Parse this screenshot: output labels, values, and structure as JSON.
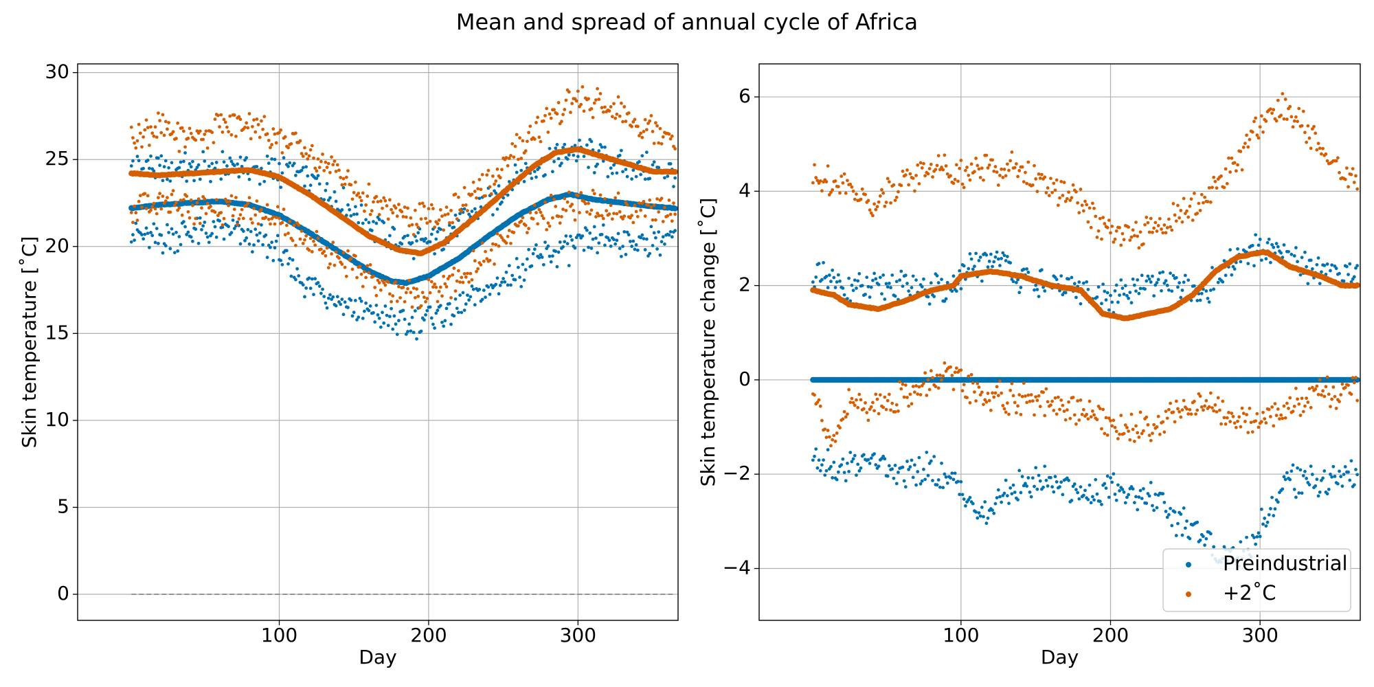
{
  "figure_title": "Mean and spread of annual cycle of Africa",
  "colors": {
    "preindustrial": "#0072b2",
    "warm": "#d55e00",
    "grid": "#b0b0b0",
    "zero_line": "#808080"
  },
  "chart_data": [
    {
      "type": "scatter",
      "xlabel": "Day",
      "ylabel": "Skin temperature [˚C]",
      "xlim": [
        -35,
        367
      ],
      "ylim": [
        -1.5,
        30.5
      ],
      "xticks": [
        100,
        200,
        300
      ],
      "yticks": [
        0,
        5,
        10,
        15,
        20,
        25,
        30
      ],
      "grid": true,
      "reference_line": {
        "y": 0,
        "x": [
          1,
          365
        ],
        "style": "dashed"
      },
      "series": [
        {
          "role": "mean",
          "color_key": "preindustrial",
          "anchors": [
            [
              1,
              22.2
            ],
            [
              20,
              22.4
            ],
            [
              40,
              22.5
            ],
            [
              60,
              22.6
            ],
            [
              80,
              22.4
            ],
            [
              100,
              21.8
            ],
            [
              120,
              20.8
            ],
            [
              140,
              19.7
            ],
            [
              160,
              18.6
            ],
            [
              175,
              18.0
            ],
            [
              185,
              17.9
            ],
            [
              200,
              18.3
            ],
            [
              220,
              19.3
            ],
            [
              240,
              20.6
            ],
            [
              260,
              21.8
            ],
            [
              280,
              22.7
            ],
            [
              295,
              23.0
            ],
            [
              310,
              22.7
            ],
            [
              330,
              22.5
            ],
            [
              350,
              22.3
            ],
            [
              365,
              22.2
            ]
          ]
        },
        {
          "role": "upper",
          "color_key": "preindustrial",
          "anchors": [
            [
              1,
              24.5
            ],
            [
              40,
              24.4
            ],
            [
              75,
              24.6
            ],
            [
              100,
              24.3
            ],
            [
              120,
              23.8
            ],
            [
              140,
              22.6
            ],
            [
              160,
              21.2
            ],
            [
              180,
              20.2
            ],
            [
              200,
              20.2
            ],
            [
              220,
              21.2
            ],
            [
              240,
              22.4
            ],
            [
              260,
              24.0
            ],
            [
              280,
              25.0
            ],
            [
              300,
              25.4
            ],
            [
              320,
              24.9
            ],
            [
              345,
              24.5
            ],
            [
              365,
              24.3
            ]
          ]
        },
        {
          "role": "lower",
          "color_key": "preindustrial",
          "anchors": [
            [
              1,
              20.7
            ],
            [
              20,
              20.4
            ],
            [
              40,
              20.9
            ],
            [
              70,
              20.8
            ],
            [
              90,
              20.2
            ],
            [
              100,
              19.6
            ],
            [
              115,
              18.0
            ],
            [
              130,
              17.5
            ],
            [
              150,
              16.4
            ],
            [
              170,
              16.0
            ],
            [
              185,
              15.4
            ],
            [
              200,
              15.9
            ],
            [
              220,
              16.6
            ],
            [
              240,
              17.5
            ],
            [
              260,
              18.6
            ],
            [
              280,
              19.5
            ],
            [
              300,
              20.1
            ],
            [
              320,
              20.4
            ],
            [
              345,
              20.3
            ],
            [
              365,
              20.6
            ]
          ]
        },
        {
          "role": "mean",
          "color_key": "warm",
          "anchors": [
            [
              1,
              24.2
            ],
            [
              20,
              24.1
            ],
            [
              40,
              24.2
            ],
            [
              60,
              24.3
            ],
            [
              80,
              24.4
            ],
            [
              100,
              24.0
            ],
            [
              120,
              23.0
            ],
            [
              140,
              21.8
            ],
            [
              160,
              20.6
            ],
            [
              180,
              19.8
            ],
            [
              195,
              19.6
            ],
            [
              210,
              20.2
            ],
            [
              230,
              21.6
            ],
            [
              250,
              23.1
            ],
            [
              270,
              24.6
            ],
            [
              285,
              25.4
            ],
            [
              300,
              25.6
            ],
            [
              315,
              25.2
            ],
            [
              335,
              24.7
            ],
            [
              350,
              24.3
            ],
            [
              365,
              24.3
            ]
          ]
        },
        {
          "role": "upper",
          "color_key": "warm",
          "anchors": [
            [
              1,
              26.4
            ],
            [
              20,
              26.8
            ],
            [
              40,
              26.3
            ],
            [
              60,
              26.9
            ],
            [
              80,
              27.2
            ],
            [
              95,
              26.3
            ],
            [
              110,
              26.0
            ],
            [
              125,
              25.0
            ],
            [
              140,
              24.2
            ],
            [
              155,
              22.8
            ],
            [
              170,
              22.2
            ],
            [
              190,
              21.6
            ],
            [
              210,
              21.7
            ],
            [
              225,
              22.6
            ],
            [
              240,
              23.6
            ],
            [
              255,
              25.2
            ],
            [
              270,
              26.6
            ],
            [
              285,
              27.6
            ],
            [
              300,
              28.4
            ],
            [
              315,
              28.2
            ],
            [
              335,
              27.4
            ],
            [
              355,
              26.6
            ],
            [
              365,
              26.4
            ]
          ]
        },
        {
          "role": "lower",
          "color_key": "warm",
          "anchors": [
            [
              1,
              22.2
            ],
            [
              40,
              22.2
            ],
            [
              70,
              22.1
            ],
            [
              90,
              21.9
            ],
            [
              110,
              21.0
            ],
            [
              130,
              19.9
            ],
            [
              150,
              18.8
            ],
            [
              170,
              17.7
            ],
            [
              190,
              17.3
            ],
            [
              210,
              17.6
            ],
            [
              230,
              18.8
            ],
            [
              250,
              20.3
            ],
            [
              270,
              21.6
            ],
            [
              290,
              22.2
            ],
            [
              310,
              22.3
            ],
            [
              335,
              22.1
            ],
            [
              365,
              22.2
            ]
          ]
        }
      ]
    },
    {
      "type": "scatter",
      "xlabel": "Day",
      "ylabel": "Skin temperature change [˚C]",
      "xlim": [
        -35,
        367
      ],
      "ylim": [
        -5.1,
        6.7
      ],
      "xticks": [
        100,
        200,
        300
      ],
      "yticks": [
        -4,
        -2,
        0,
        2,
        4,
        6
      ],
      "ytick_labels": [
        "−4",
        "−2",
        "0",
        "2",
        "4",
        "6"
      ],
      "grid": true,
      "legend": {
        "placement": "lower right",
        "entries": [
          "Preindustrial",
          "+2˚C"
        ]
      },
      "series": [
        {
          "name": "Preindustrial",
          "role": "mean",
          "color_key": "preindustrial",
          "anchors": [
            [
              1,
              0
            ],
            [
              365,
              0
            ]
          ]
        },
        {
          "role": "upper",
          "color_key": "preindustrial",
          "anchors": [
            [
              1,
              2.2
            ],
            [
              30,
              1.9
            ],
            [
              60,
              2.0
            ],
            [
              90,
              1.9
            ],
            [
              110,
              2.4
            ],
            [
              125,
              2.6
            ],
            [
              140,
              2.1
            ],
            [
              160,
              2.0
            ],
            [
              180,
              1.9
            ],
            [
              200,
              1.7
            ],
            [
              220,
              1.9
            ],
            [
              240,
              2.1
            ],
            [
              260,
              1.8
            ],
            [
              280,
              2.4
            ],
            [
              300,
              2.8
            ],
            [
              320,
              2.5
            ],
            [
              340,
              2.3
            ],
            [
              365,
              2.3
            ]
          ]
        },
        {
          "role": "lower",
          "color_key": "preindustrial",
          "anchors": [
            [
              1,
              -1.6
            ],
            [
              20,
              -1.9
            ],
            [
              40,
              -1.7
            ],
            [
              60,
              -2.0
            ],
            [
              80,
              -1.9
            ],
            [
              100,
              -2.3
            ],
            [
              115,
              -3.0
            ],
            [
              130,
              -2.4
            ],
            [
              145,
              -2.2
            ],
            [
              160,
              -2.1
            ],
            [
              180,
              -2.4
            ],
            [
              200,
              -2.3
            ],
            [
              215,
              -2.4
            ],
            [
              230,
              -2.5
            ],
            [
              245,
              -3.0
            ],
            [
              260,
              -3.3
            ],
            [
              275,
              -3.7
            ],
            [
              290,
              -3.7
            ],
            [
              305,
              -2.8
            ],
            [
              320,
              -2.1
            ],
            [
              340,
              -2.2
            ],
            [
              365,
              -2.0
            ]
          ]
        },
        {
          "name": "+2˚C",
          "role": "mean",
          "color_key": "warm",
          "anchors": [
            [
              1,
              1.9
            ],
            [
              15,
              1.8
            ],
            [
              25,
              1.6
            ],
            [
              45,
              1.5
            ],
            [
              65,
              1.7
            ],
            [
              80,
              1.9
            ],
            [
              95,
              2.0
            ],
            [
              100,
              2.2
            ],
            [
              120,
              2.3
            ],
            [
              140,
              2.2
            ],
            [
              160,
              2.0
            ],
            [
              180,
              1.9
            ],
            [
              195,
              1.4
            ],
            [
              210,
              1.3
            ],
            [
              225,
              1.4
            ],
            [
              240,
              1.5
            ],
            [
              255,
              1.8
            ],
            [
              270,
              2.3
            ],
            [
              285,
              2.6
            ],
            [
              300,
              2.7
            ],
            [
              305,
              2.7
            ],
            [
              320,
              2.4
            ],
            [
              340,
              2.2
            ],
            [
              355,
              2.0
            ],
            [
              365,
              2.0
            ]
          ]
        },
        {
          "role": "upper",
          "color_key": "warm",
          "anchors": [
            [
              1,
              4.3
            ],
            [
              20,
              4.2
            ],
            [
              40,
              3.7
            ],
            [
              60,
              4.2
            ],
            [
              80,
              4.5
            ],
            [
              100,
              4.4
            ],
            [
              120,
              4.5
            ],
            [
              140,
              4.5
            ],
            [
              160,
              4.0
            ],
            [
              180,
              3.8
            ],
            [
              195,
              3.2
            ],
            [
              205,
              3.1
            ],
            [
              220,
              3.0
            ],
            [
              240,
              3.4
            ],
            [
              260,
              3.7
            ],
            [
              275,
              4.3
            ],
            [
              290,
              4.9
            ],
            [
              300,
              5.4
            ],
            [
              315,
              5.9
            ],
            [
              330,
              5.3
            ],
            [
              350,
              4.6
            ],
            [
              365,
              4.1
            ]
          ]
        },
        {
          "role": "lower",
          "color_key": "warm",
          "anchors": [
            [
              1,
              -0.2
            ],
            [
              15,
              -1.5
            ],
            [
              25,
              -0.5
            ],
            [
              50,
              -0.5
            ],
            [
              70,
              -0.2
            ],
            [
              90,
              0.1
            ],
            [
              110,
              -0.3
            ],
            [
              125,
              -0.4
            ],
            [
              145,
              -0.4
            ],
            [
              165,
              -0.6
            ],
            [
              185,
              -0.7
            ],
            [
              205,
              -1.0
            ],
            [
              225,
              -1.0
            ],
            [
              245,
              -0.7
            ],
            [
              265,
              -0.5
            ],
            [
              285,
              -0.9
            ],
            [
              305,
              -0.8
            ],
            [
              325,
              -0.5
            ],
            [
              345,
              -0.3
            ],
            [
              365,
              -0.3
            ]
          ]
        }
      ]
    }
  ]
}
